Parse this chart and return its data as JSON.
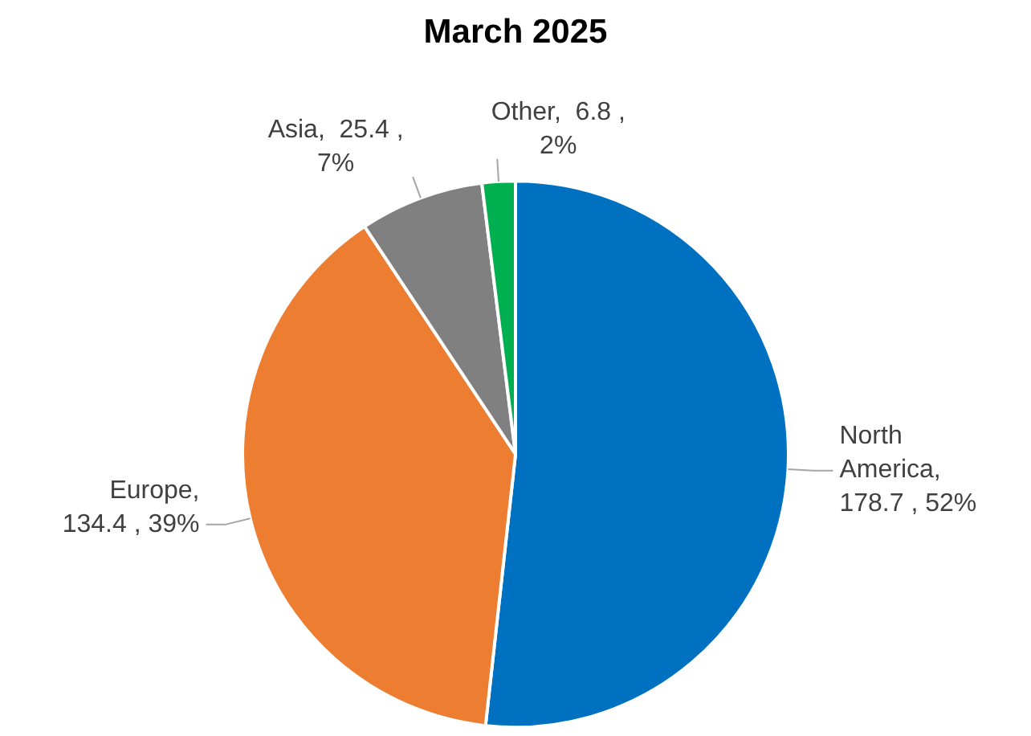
{
  "chart_data": {
    "type": "pie",
    "title": "March 2025",
    "categories": [
      "North America",
      "Europe",
      "Asia",
      "Other"
    ],
    "values": [
      178.7,
      134.4,
      25.4,
      6.8
    ],
    "colors": [
      "#0070c0",
      "#ed7d31",
      "#808080",
      "#00b050"
    ],
    "value_labels": [
      ",\n178.7 , 52%",
      ",\n134.4 , 39%",
      ",  25.4 ,\n7%",
      ",  6.8 ,\n2%"
    ],
    "legend": false
  }
}
